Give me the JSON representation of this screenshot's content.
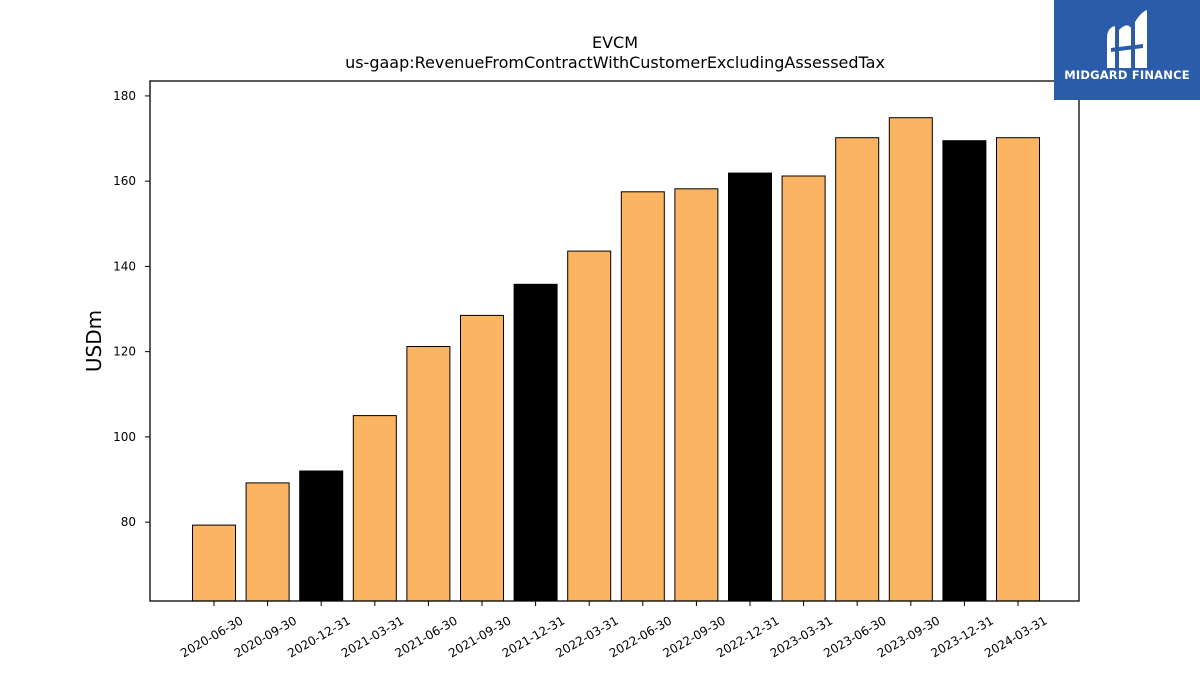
{
  "brand": {
    "name": "MIDGARD FINANCE",
    "bg_color": "#2a5caa"
  },
  "chart_data": {
    "type": "bar",
    "title": "EVCM",
    "subtitle": "us-gaap:RevenueFromContractWithCustomerExcludingAssessedTax",
    "xlabel": "",
    "ylabel": "USDm",
    "ylim": [
      61.5,
      183.5
    ],
    "yticks": [
      80,
      100,
      120,
      140,
      160,
      180
    ],
    "categories": [
      "2020-06-30",
      "2020-09-30",
      "2020-12-31",
      "2021-03-31",
      "2021-06-30",
      "2021-09-30",
      "2021-12-31",
      "2022-03-31",
      "2022-06-30",
      "2022-09-30",
      "2022-12-31",
      "2023-03-31",
      "2023-06-30",
      "2023-09-30",
      "2023-12-31",
      "2024-03-31"
    ],
    "values": [
      79.3,
      89.2,
      92.0,
      105.0,
      121.2,
      128.5,
      135.8,
      143.6,
      157.5,
      158.2,
      161.9,
      161.2,
      170.2,
      174.9,
      169.5,
      170.2
    ],
    "colors": {
      "quarter": "#fbb462",
      "fiscal_year_end": "#000000",
      "edge": "#000000"
    },
    "fiscal_year_end_categories": [
      "2020-12-31",
      "2021-12-31",
      "2022-12-31",
      "2023-12-31"
    ],
    "grid": false,
    "legend": "none"
  }
}
